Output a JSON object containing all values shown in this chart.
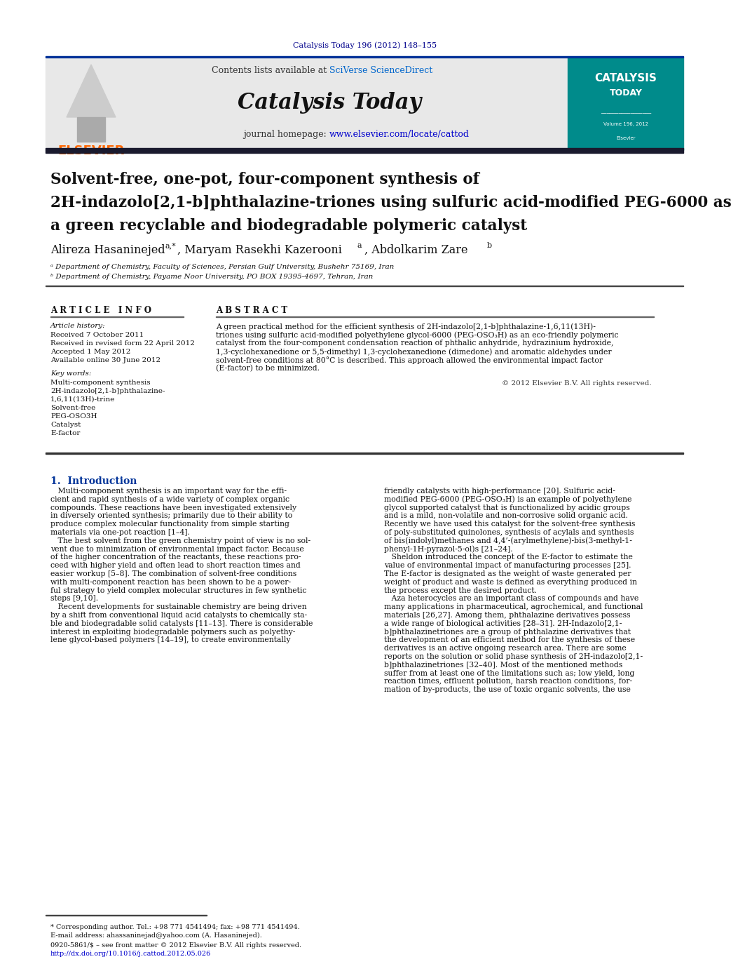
{
  "bg_color": "#ffffff",
  "header_journal_ref": "Catalysis Today 196 (2012) 148–155",
  "header_journal_ref_color": "#00008B",
  "journal_name": "Catalysis Today",
  "elsevier_color": "#FF6600",
  "header_bg": "#e8e8e8",
  "cover_bg": "#008B8B",
  "title_line1": "Solvent-free, one-pot, four-component synthesis of",
  "title_line2": "2H-indazolo[2,1-​b]phthalazine-triones using sulfuric acid-modified PEG-6000 as",
  "title_line3": "a green recyclable and biodegradable polymeric catalyst",
  "article_info_header": "A R T I C L E   I N F O",
  "abstract_header": "A B S T R A C T",
  "article_history_label": "Article history:",
  "received_label": "Received 7 October 2011",
  "revised_label": "Received in revised form 22 April 2012",
  "accepted_label": "Accepted 1 May 2012",
  "available_label": "Available online 30 June 2012",
  "keywords_label": "Key words:",
  "keywords": [
    "Multi-component synthesis",
    "2H-indazolo[2,1-b]phthalazine-",
    "1,6,11(13H)-trine",
    "Solvent-free",
    "PEG-OSO3H",
    "Catalyst",
    "E-factor"
  ],
  "copyright_text": "© 2012 Elsevier B.V. All rights reserved.",
  "intro_header": "1.  Introduction",
  "footer_issn": "0920-5861/$ – see front matter © 2012 Elsevier B.V. All rights reserved.",
  "footer_doi": "http://dx.doi.org/10.1016/j.cattod.2012.05.026",
  "corresponding_note": "* Corresponding author. Tel.: +98 771 4541494; fax: +98 771 4541494.",
  "email_note": "E-mail address: ahassaninejad@yahoo.com (A. Hasaninejed).",
  "affil_a": "ᵃ Department of Chemistry, Faculty of Sciences, Persian Gulf University, Bushehr 75169, Iran",
  "affil_b": "ᵇ Department of Chemistry, Payame Noor University, PO BOX 19395-4697, Tehran, Iran"
}
